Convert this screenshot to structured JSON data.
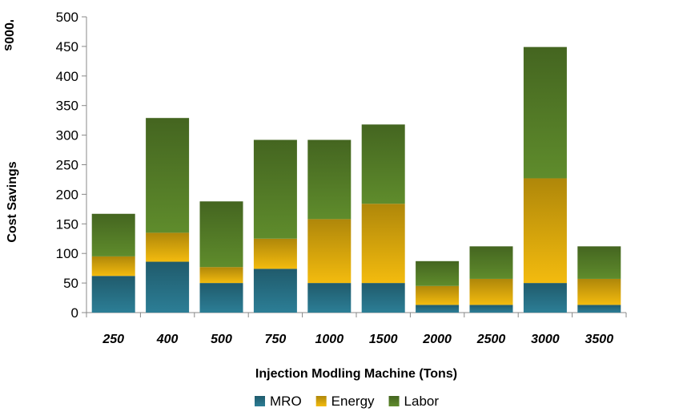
{
  "chart_data": {
    "type": "bar",
    "stacked": true,
    "categories": [
      "250",
      "400",
      "500",
      "750",
      "1000",
      "1500",
      "2000",
      "2500",
      "3000",
      "3500"
    ],
    "series": [
      {
        "name": "MRO",
        "color": "#2c7e96",
        "values": [
          62,
          86,
          50,
          74,
          50,
          50,
          13,
          13,
          50,
          13
        ]
      },
      {
        "name": "Energy",
        "color": "#f3bb0e",
        "values": [
          33,
          49,
          27,
          51,
          108,
          134,
          32,
          44,
          177,
          44
        ]
      },
      {
        "name": "Labor",
        "color": "#5f8c2c",
        "values": [
          72,
          194,
          111,
          167,
          134,
          134,
          42,
          55,
          222,
          55
        ]
      }
    ],
    "title": "",
    "xlabel": "Injection Modling Machine (Tons)",
    "ylabel": "Cost Savings",
    "y_unit_label": "'000s",
    "ylim": [
      0,
      500
    ],
    "yticks": [
      0,
      50,
      100,
      150,
      200,
      250,
      300,
      350,
      400,
      450,
      500
    ],
    "grid": false,
    "legend_position": "bottom"
  }
}
